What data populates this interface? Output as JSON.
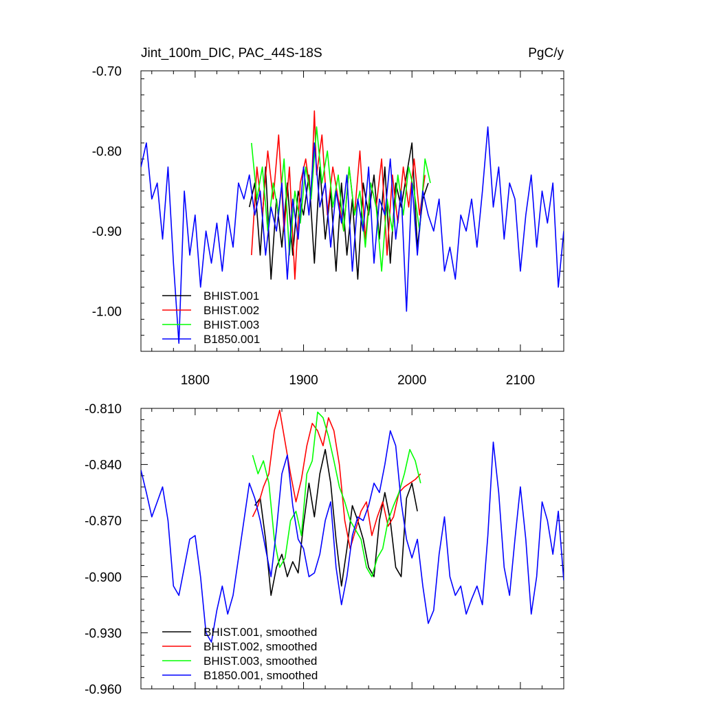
{
  "chart_data": [
    {
      "type": "line",
      "title": "Jint_100m_DIC, PAC_44S-18S",
      "units": "PgC/y",
      "xlim": [
        1750,
        2140
      ],
      "ylim": [
        -1.05,
        -0.7
      ],
      "x_ticks": [
        1800,
        1900,
        2000,
        2100
      ],
      "x_tick_labels": [
        "1800",
        "1900",
        "2000",
        "2100"
      ],
      "y_ticks": [
        -1.0,
        -0.9,
        -0.8,
        -0.7
      ],
      "y_tick_labels": [
        "-1.00",
        "-0.90",
        "-0.80",
        "-0.70"
      ],
      "legend_position": "bottom-left",
      "series": [
        {
          "name": "BHIST.001",
          "color": "#000000",
          "x": [
            1850,
            1855,
            1860,
            1865,
            1870,
            1875,
            1880,
            1885,
            1890,
            1895,
            1900,
            1905,
            1910,
            1915,
            1920,
            1925,
            1930,
            1935,
            1940,
            1945,
            1950,
            1955,
            1960,
            1965,
            1970,
            1975,
            1980,
            1985,
            1990,
            1995,
            2000,
            2005,
            2010,
            2015
          ],
          "y": [
            -0.87,
            -0.84,
            -0.93,
            -0.82,
            -0.96,
            -0.86,
            -0.92,
            -0.84,
            -0.93,
            -0.85,
            -0.88,
            -0.83,
            -0.94,
            -0.82,
            -0.91,
            -0.85,
            -0.95,
            -0.84,
            -0.93,
            -0.86,
            -0.96,
            -0.84,
            -0.88,
            -0.83,
            -0.91,
            -0.82,
            -0.94,
            -0.84,
            -0.87,
            -0.83,
            -0.79,
            -0.92,
            -0.86,
            -0.84
          ]
        },
        {
          "name": "BHIST.002",
          "color": "#ff0000",
          "x": [
            1852,
            1857,
            1862,
            1867,
            1872,
            1877,
            1882,
            1887,
            1892,
            1897,
            1902,
            1907,
            1910,
            1912,
            1917,
            1922,
            1927,
            1932,
            1937,
            1942,
            1947,
            1952,
            1957,
            1962,
            1967,
            1972,
            1977,
            1982,
            1987,
            1992,
            1997,
            2002,
            2007,
            2012
          ],
          "y": [
            -0.93,
            -0.82,
            -0.88,
            -0.8,
            -0.86,
            -0.78,
            -0.9,
            -0.82,
            -0.96,
            -0.84,
            -0.81,
            -0.86,
            -0.75,
            -0.83,
            -0.78,
            -0.88,
            -0.82,
            -0.86,
            -0.9,
            -0.82,
            -0.88,
            -0.8,
            -0.91,
            -0.84,
            -0.87,
            -0.81,
            -0.93,
            -0.83,
            -0.89,
            -0.82,
            -0.87,
            -0.81,
            -0.88,
            -0.83
          ]
        },
        {
          "name": "BHIST.003",
          "color": "#00ff00",
          "x": [
            1852,
            1857,
            1862,
            1867,
            1872,
            1877,
            1882,
            1887,
            1892,
            1897,
            1902,
            1907,
            1912,
            1917,
            1922,
            1927,
            1932,
            1937,
            1942,
            1947,
            1952,
            1957,
            1962,
            1967,
            1972,
            1977,
            1982,
            1987,
            1992,
            1997,
            2002,
            2007,
            2012,
            2017
          ],
          "y": [
            -0.79,
            -0.86,
            -0.82,
            -0.9,
            -0.84,
            -0.88,
            -0.81,
            -0.93,
            -0.85,
            -0.89,
            -0.82,
            -0.86,
            -0.77,
            -0.84,
            -0.8,
            -0.87,
            -0.83,
            -0.9,
            -0.82,
            -0.88,
            -0.85,
            -0.92,
            -0.84,
            -0.87,
            -0.95,
            -0.86,
            -0.9,
            -0.83,
            -0.88,
            -0.82,
            -0.85,
            -0.9,
            -0.81,
            -0.84
          ]
        },
        {
          "name": "B1850.001",
          "color": "#0000ff",
          "x": [
            1750,
            1755,
            1760,
            1765,
            1770,
            1775,
            1780,
            1785,
            1790,
            1795,
            1800,
            1805,
            1810,
            1815,
            1820,
            1825,
            1830,
            1835,
            1840,
            1845,
            1850,
            1855,
            1860,
            1865,
            1870,
            1875,
            1880,
            1885,
            1890,
            1895,
            1900,
            1905,
            1910,
            1915,
            1920,
            1925,
            1930,
            1935,
            1940,
            1945,
            1950,
            1955,
            1960,
            1965,
            1970,
            1975,
            1980,
            1985,
            1990,
            1995,
            2000,
            2005,
            2010,
            2015,
            2020,
            2025,
            2030,
            2035,
            2040,
            2045,
            2050,
            2055,
            2060,
            2065,
            2070,
            2075,
            2080,
            2085,
            2090,
            2095,
            2100,
            2105,
            2110,
            2115,
            2120,
            2125,
            2130,
            2135,
            2140
          ],
          "y": [
            -0.82,
            -0.79,
            -0.86,
            -0.84,
            -0.91,
            -0.82,
            -0.94,
            -1.04,
            -0.85,
            -0.93,
            -0.88,
            -0.97,
            -0.9,
            -0.94,
            -0.89,
            -0.95,
            -0.88,
            -0.92,
            -0.84,
            -0.86,
            -0.83,
            -0.88,
            -0.85,
            -0.93,
            -0.87,
            -0.9,
            -0.84,
            -0.96,
            -0.86,
            -0.91,
            -0.82,
            -0.88,
            -0.79,
            -0.87,
            -0.84,
            -0.92,
            -0.85,
            -0.89,
            -0.83,
            -0.95,
            -0.86,
            -0.9,
            -0.82,
            -0.94,
            -0.86,
            -0.88,
            -0.81,
            -0.91,
            -0.85,
            -1.0,
            -0.84,
            -0.93,
            -0.85,
            -0.88,
            -0.9,
            -0.86,
            -0.95,
            -0.92,
            -0.96,
            -0.88,
            -0.9,
            -0.86,
            -0.92,
            -0.85,
            -0.77,
            -0.87,
            -0.82,
            -0.91,
            -0.84,
            -0.86,
            -0.95,
            -0.88,
            -0.83,
            -0.92,
            -0.85,
            -0.89,
            -0.84,
            -0.97,
            -0.9
          ]
        }
      ]
    },
    {
      "type": "line",
      "title": "",
      "xlim": [
        1750,
        2140
      ],
      "ylim": [
        -0.96,
        -0.81
      ],
      "x_ticks": [
        1800,
        1900,
        2000,
        2100
      ],
      "y_ticks": [
        -0.96,
        -0.93,
        -0.9,
        -0.87,
        -0.84,
        -0.81
      ],
      "y_tick_labels": [
        "-0.960",
        "-0.930",
        "-0.900",
        "-0.870",
        "-0.840",
        "-0.810"
      ],
      "legend_position": "bottom-left",
      "series": [
        {
          "name": "BHIST.001, smoothed",
          "color": "#000000",
          "x": [
            1855,
            1860,
            1865,
            1870,
            1875,
            1880,
            1885,
            1890,
            1895,
            1900,
            1905,
            1910,
            1915,
            1920,
            1925,
            1930,
            1935,
            1940,
            1945,
            1950,
            1955,
            1960,
            1965,
            1970,
            1975,
            1980,
            1985,
            1990,
            1995,
            2000,
            2005
          ],
          "y": [
            -0.862,
            -0.858,
            -0.88,
            -0.91,
            -0.895,
            -0.888,
            -0.9,
            -0.892,
            -0.898,
            -0.872,
            -0.85,
            -0.868,
            -0.845,
            -0.832,
            -0.85,
            -0.88,
            -0.905,
            -0.885,
            -0.862,
            -0.87,
            -0.88,
            -0.895,
            -0.9,
            -0.87,
            -0.855,
            -0.87,
            -0.895,
            -0.9,
            -0.858,
            -0.85,
            -0.865
          ]
        },
        {
          "name": "BHIST.002, smoothed",
          "color": "#ff0000",
          "x": [
            1853,
            1858,
            1863,
            1868,
            1873,
            1878,
            1883,
            1888,
            1893,
            1898,
            1903,
            1908,
            1913,
            1918,
            1923,
            1928,
            1933,
            1938,
            1943,
            1948,
            1953,
            1958,
            1963,
            1968,
            1973,
            1978,
            1983,
            1988,
            1993,
            1998,
            2003,
            2008
          ],
          "y": [
            -0.868,
            -0.862,
            -0.852,
            -0.845,
            -0.822,
            -0.811,
            -0.828,
            -0.845,
            -0.86,
            -0.848,
            -0.83,
            -0.818,
            -0.822,
            -0.83,
            -0.815,
            -0.822,
            -0.84,
            -0.87,
            -0.885,
            -0.875,
            -0.865,
            -0.86,
            -0.878,
            -0.868,
            -0.86,
            -0.873,
            -0.868,
            -0.855,
            -0.852,
            -0.85,
            -0.848,
            -0.845
          ]
        },
        {
          "name": "BHIST.003, smoothed",
          "color": "#00ff00",
          "x": [
            1853,
            1858,
            1863,
            1868,
            1873,
            1878,
            1883,
            1888,
            1893,
            1898,
            1903,
            1908,
            1913,
            1918,
            1923,
            1928,
            1933,
            1938,
            1943,
            1948,
            1953,
            1958,
            1963,
            1968,
            1973,
            1978,
            1983,
            1988,
            1993,
            1998,
            2003,
            2008
          ],
          "y": [
            -0.835,
            -0.845,
            -0.838,
            -0.85,
            -0.88,
            -0.895,
            -0.89,
            -0.87,
            -0.865,
            -0.878,
            -0.845,
            -0.838,
            -0.812,
            -0.815,
            -0.825,
            -0.838,
            -0.852,
            -0.86,
            -0.87,
            -0.875,
            -0.88,
            -0.895,
            -0.9,
            -0.89,
            -0.885,
            -0.87,
            -0.862,
            -0.855,
            -0.845,
            -0.832,
            -0.838,
            -0.85
          ]
        },
        {
          "name": "B1850.001, smoothed",
          "color": "#0000ff",
          "x": [
            1750,
            1755,
            1760,
            1765,
            1770,
            1775,
            1780,
            1785,
            1790,
            1795,
            1800,
            1805,
            1810,
            1815,
            1820,
            1825,
            1830,
            1835,
            1840,
            1845,
            1850,
            1855,
            1860,
            1865,
            1870,
            1875,
            1880,
            1885,
            1890,
            1895,
            1900,
            1905,
            1910,
            1915,
            1920,
            1925,
            1930,
            1935,
            1940,
            1945,
            1950,
            1955,
            1960,
            1965,
            1970,
            1975,
            1980,
            1985,
            1990,
            1995,
            2000,
            2005,
            2010,
            2015,
            2020,
            2025,
            2030,
            2035,
            2040,
            2045,
            2050,
            2055,
            2060,
            2065,
            2070,
            2075,
            2080,
            2085,
            2090,
            2095,
            2100,
            2105,
            2110,
            2115,
            2120,
            2125,
            2130,
            2135,
            2140
          ],
          "y": [
            -0.843,
            -0.855,
            -0.868,
            -0.86,
            -0.852,
            -0.87,
            -0.905,
            -0.91,
            -0.895,
            -0.88,
            -0.878,
            -0.9,
            -0.93,
            -0.935,
            -0.918,
            -0.905,
            -0.92,
            -0.91,
            -0.89,
            -0.87,
            -0.85,
            -0.858,
            -0.87,
            -0.885,
            -0.9,
            -0.875,
            -0.845,
            -0.835,
            -0.862,
            -0.88,
            -0.885,
            -0.9,
            -0.898,
            -0.888,
            -0.87,
            -0.86,
            -0.895,
            -0.915,
            -0.9,
            -0.878,
            -0.868,
            -0.87,
            -0.862,
            -0.85,
            -0.855,
            -0.84,
            -0.822,
            -0.83,
            -0.86,
            -0.88,
            -0.89,
            -0.88,
            -0.905,
            -0.925,
            -0.918,
            -0.888,
            -0.868,
            -0.9,
            -0.91,
            -0.905,
            -0.92,
            -0.912,
            -0.905,
            -0.915,
            -0.878,
            -0.828,
            -0.855,
            -0.895,
            -0.91,
            -0.88,
            -0.852,
            -0.88,
            -0.92,
            -0.9,
            -0.86,
            -0.87,
            -0.888,
            -0.865,
            -0.902
          ]
        }
      ]
    }
  ]
}
